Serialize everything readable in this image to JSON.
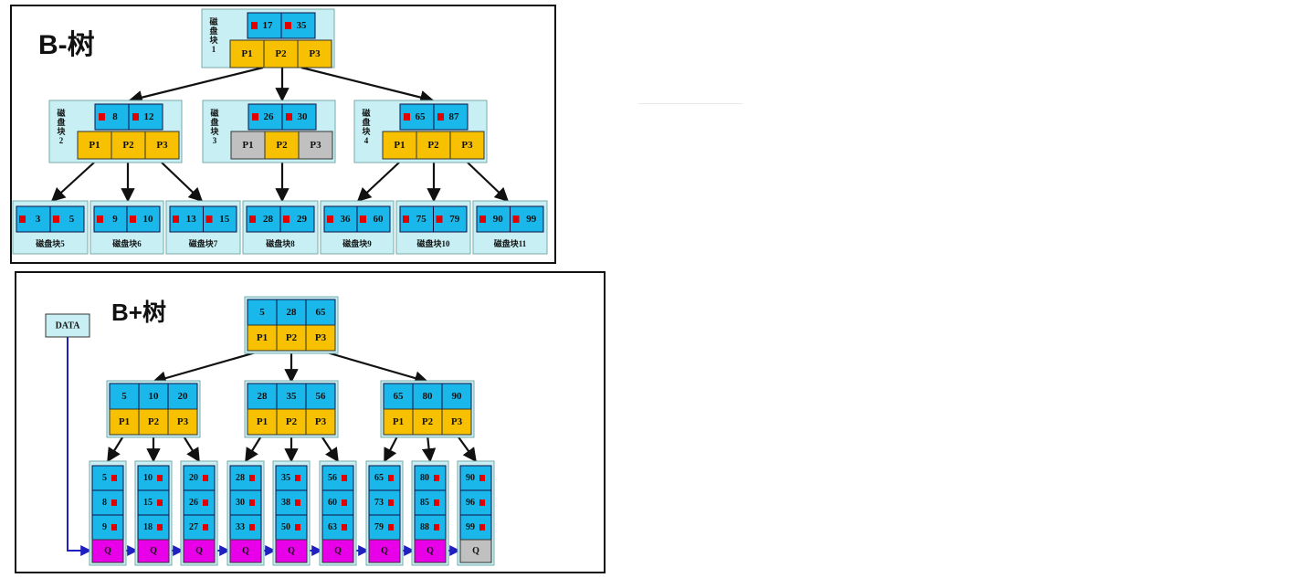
{
  "btree": {
    "title": "B-树",
    "nodes": [
      {
        "id": "root",
        "keys": [
          "17",
          "35"
        ],
        "pointers": [
          "P1",
          "P2",
          "P3"
        ],
        "label": "磁盘块1",
        "pointer_colors": [
          "#f7c000",
          "#f7c000",
          "#f7c000"
        ]
      },
      {
        "id": "n2",
        "keys": [
          "8",
          "12"
        ],
        "pointers": [
          "P1",
          "P2",
          "P3"
        ],
        "label": "磁盘块2",
        "pointer_colors": [
          "#f7c000",
          "#f7c000",
          "#f7c000"
        ]
      },
      {
        "id": "n3",
        "keys": [
          "26",
          "30"
        ],
        "pointers": [
          "P1",
          "P2",
          "P3"
        ],
        "label": "磁盘块3",
        "pointer_colors": [
          "#c0c0c0",
          "#f7c000",
          "#c0c0c0"
        ]
      },
      {
        "id": "n4",
        "keys": [
          "65",
          "87"
        ],
        "pointers": [
          "P1",
          "P2",
          "P3"
        ],
        "label": "磁盘块4",
        "pointer_colors": [
          "#f7c000",
          "#f7c000",
          "#f7c000"
        ]
      }
    ],
    "leaves": [
      {
        "keys": [
          "3",
          "5"
        ],
        "label": "磁盘块5"
      },
      {
        "keys": [
          "9",
          "10"
        ],
        "label": "磁盘块6"
      },
      {
        "keys": [
          "13",
          "15"
        ],
        "label": "磁盘块7"
      },
      {
        "keys": [
          "28",
          "29"
        ],
        "label": "磁盘块8"
      },
      {
        "keys": [
          "36",
          "60"
        ],
        "label": "磁盘块9"
      },
      {
        "keys": [
          "75",
          "79"
        ],
        "label": "磁盘块10"
      },
      {
        "keys": [
          "90",
          "99"
        ],
        "label": "磁盘块11"
      }
    ]
  },
  "bplustree": {
    "title": "B+树",
    "data_label": "DATA",
    "root": {
      "keys": [
        "5",
        "28",
        "65"
      ],
      "pointers": [
        "P1",
        "P2",
        "P3"
      ]
    },
    "internals": [
      {
        "keys": [
          "5",
          "10",
          "20"
        ],
        "pointers": [
          "P1",
          "P2",
          "P3"
        ]
      },
      {
        "keys": [
          "28",
          "35",
          "56"
        ],
        "pointers": [
          "P1",
          "P2",
          "P3"
        ]
      },
      {
        "keys": [
          "65",
          "80",
          "90"
        ],
        "pointers": [
          "P1",
          "P2",
          "P3"
        ]
      }
    ],
    "leaves": [
      {
        "keys": [
          "5",
          "8",
          "9"
        ],
        "q": "Q",
        "q_color": "#e800e8"
      },
      {
        "keys": [
          "10",
          "15",
          "18"
        ],
        "q": "Q",
        "q_color": "#e800e8"
      },
      {
        "keys": [
          "20",
          "26",
          "27"
        ],
        "q": "Q",
        "q_color": "#e800e8"
      },
      {
        "keys": [
          "28",
          "30",
          "33"
        ],
        "q": "Q",
        "q_color": "#e800e8"
      },
      {
        "keys": [
          "35",
          "38",
          "50"
        ],
        "q": "Q",
        "q_color": "#e800e8"
      },
      {
        "keys": [
          "56",
          "60",
          "63"
        ],
        "q": "Q",
        "q_color": "#e800e8"
      },
      {
        "keys": [
          "65",
          "73",
          "79"
        ],
        "q": "Q",
        "q_color": "#e800e8"
      },
      {
        "keys": [
          "80",
          "85",
          "88"
        ],
        "q": "Q",
        "q_color": "#e800e8"
      },
      {
        "keys": [
          "90",
          "96",
          "99"
        ],
        "q": "Q",
        "q_color": "#c0c0c0"
      }
    ]
  },
  "colors": {
    "key_cell": "#1ab8ea",
    "pointer_cell": "#f7c000",
    "node_bg": "#c8f0f4",
    "marker": "#e00000",
    "link": "#2020c0"
  }
}
